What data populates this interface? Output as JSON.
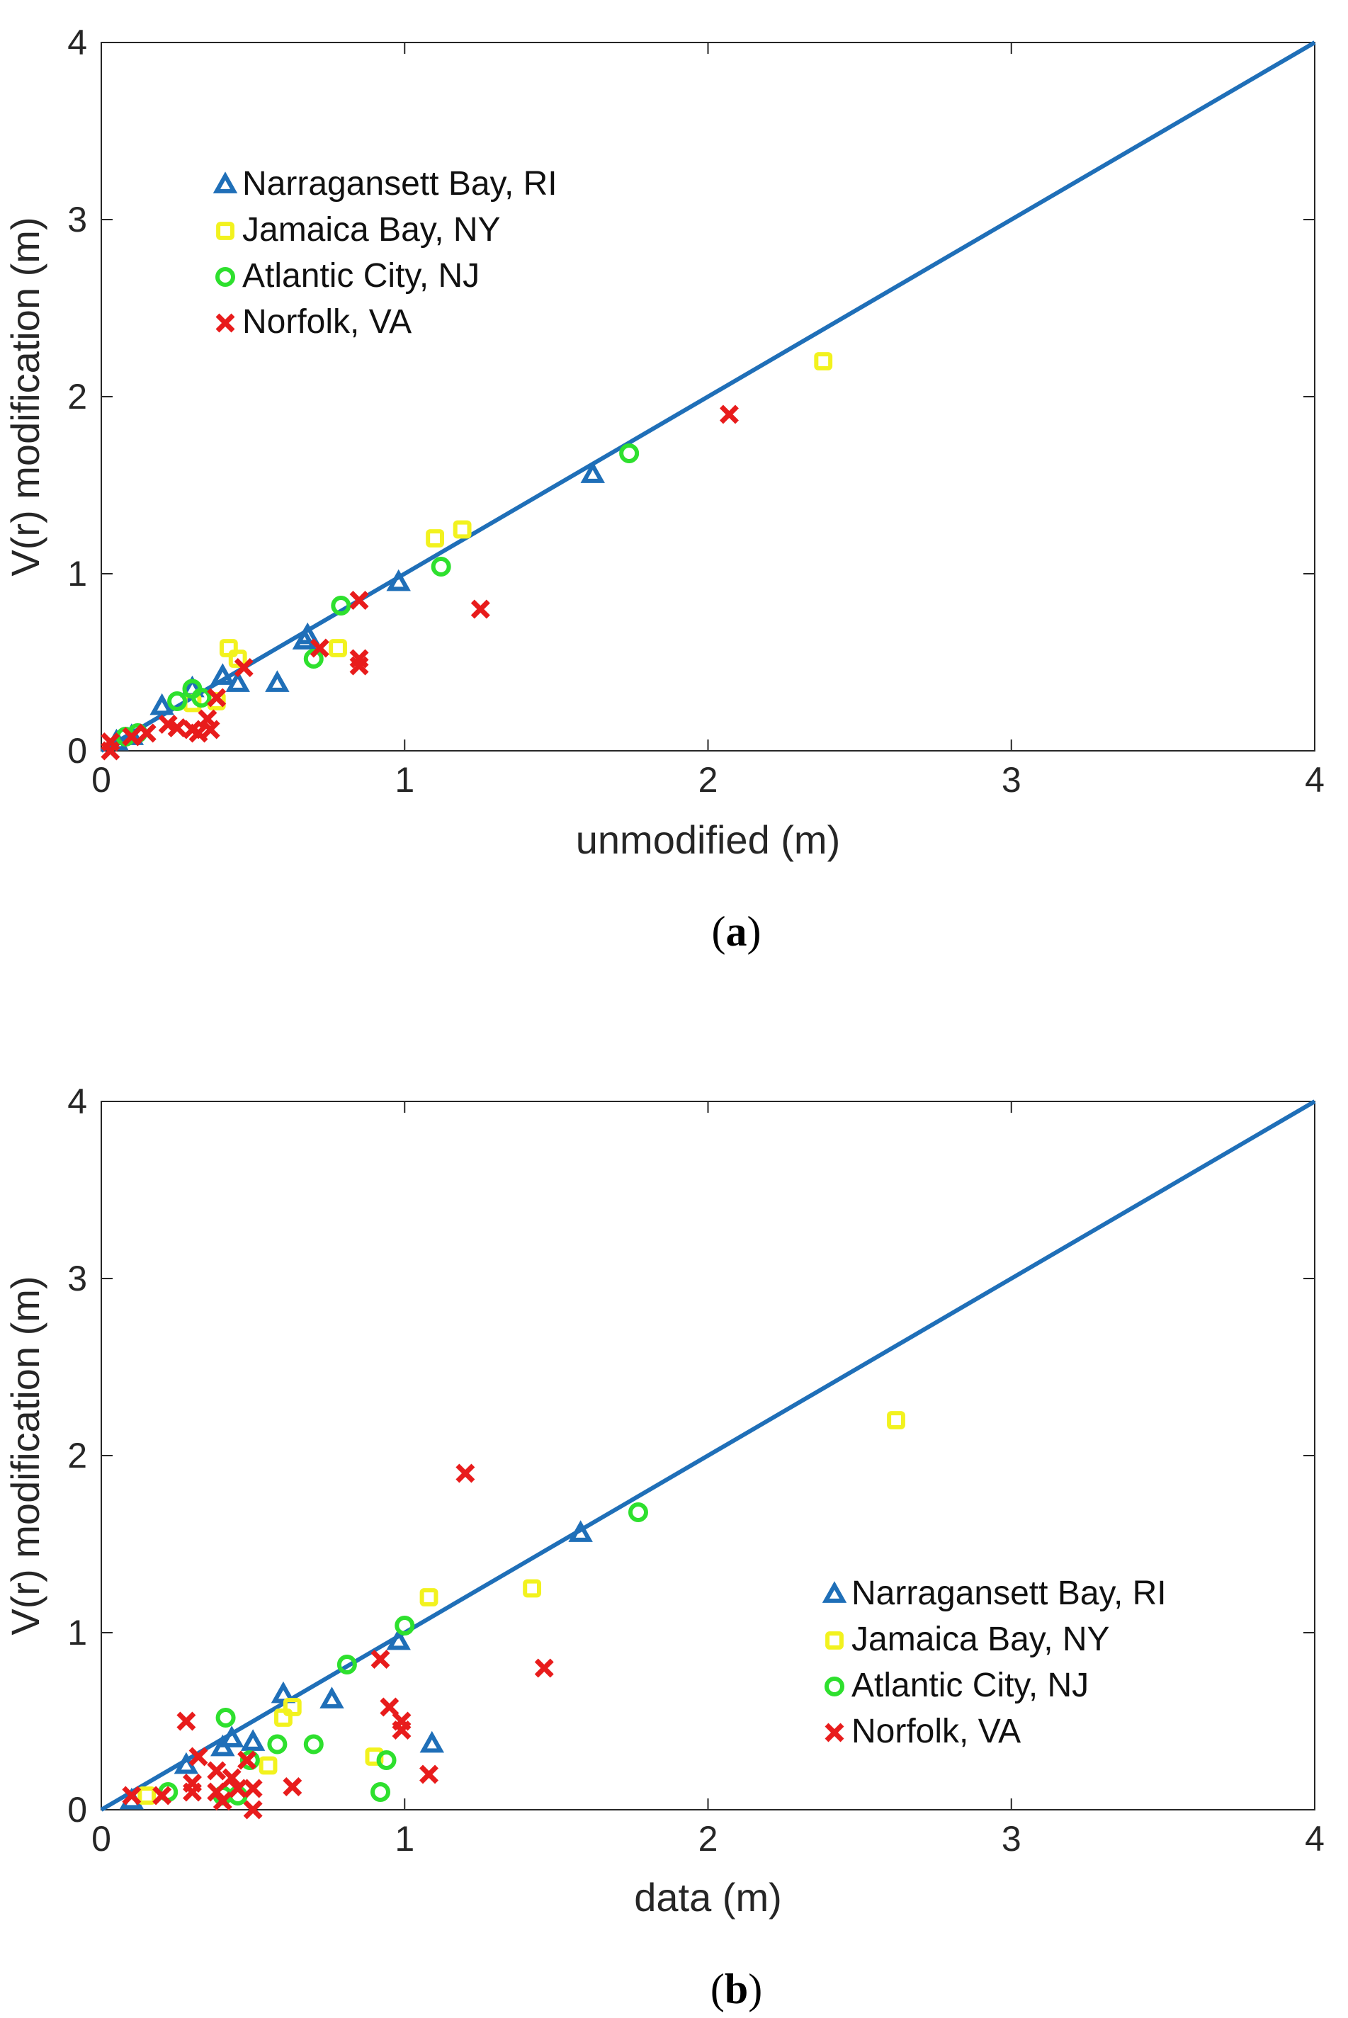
{
  "chart_data": [
    {
      "panel_label": "a",
      "type": "scatter",
      "xlabel": "unmodified (m)",
      "ylabel": "V(r) modification (m)",
      "xlim": [
        0,
        4
      ],
      "ylim": [
        0,
        4
      ],
      "xticks": [
        "0",
        "1",
        "2",
        "3",
        "4"
      ],
      "yticks": [
        "0",
        "1",
        "2",
        "3",
        "4"
      ],
      "legend_position": "upper-left",
      "line": {
        "x": [
          0,
          4
        ],
        "y": [
          0,
          4
        ],
        "color": "#1f6fb8"
      },
      "series": [
        {
          "name": "Narragansett Bay, RI",
          "marker": "triangle",
          "color": "#1f6fb8",
          "points": [
            [
              0.05,
              0.05
            ],
            [
              0.1,
              0.08
            ],
            [
              0.2,
              0.25
            ],
            [
              0.3,
              0.35
            ],
            [
              0.4,
              0.42
            ],
            [
              0.45,
              0.38
            ],
            [
              0.58,
              0.38
            ],
            [
              0.67,
              0.62
            ],
            [
              0.68,
              0.65
            ],
            [
              0.98,
              0.95
            ],
            [
              1.62,
              1.56
            ]
          ]
        },
        {
          "name": "Jamaica Bay, NY",
          "marker": "square",
          "color": "#f2f21e",
          "points": [
            [
              0.3,
              0.27
            ],
            [
              0.38,
              0.28
            ],
            [
              0.42,
              0.58
            ],
            [
              0.45,
              0.52
            ],
            [
              0.78,
              0.58
            ],
            [
              1.1,
              1.2
            ],
            [
              1.19,
              1.25
            ],
            [
              2.38,
              2.2
            ]
          ]
        },
        {
          "name": "Atlantic City, NJ",
          "marker": "circle",
          "color": "#2ee02e",
          "points": [
            [
              0.08,
              0.08
            ],
            [
              0.12,
              0.1
            ],
            [
              0.25,
              0.28
            ],
            [
              0.3,
              0.35
            ],
            [
              0.33,
              0.3
            ],
            [
              0.7,
              0.52
            ],
            [
              0.79,
              0.82
            ],
            [
              1.12,
              1.04
            ],
            [
              1.74,
              1.68
            ]
          ]
        },
        {
          "name": "Norfolk, VA",
          "marker": "x",
          "color": "#e81c1c",
          "points": [
            [
              0.03,
              0.05
            ],
            [
              0.03,
              0.0
            ],
            [
              0.1,
              0.08
            ],
            [
              0.15,
              0.1
            ],
            [
              0.22,
              0.15
            ],
            [
              0.25,
              0.13
            ],
            [
              0.3,
              0.12
            ],
            [
              0.32,
              0.1
            ],
            [
              0.35,
              0.18
            ],
            [
              0.36,
              0.12
            ],
            [
              0.38,
              0.3
            ],
            [
              0.47,
              0.47
            ],
            [
              0.72,
              0.58
            ],
            [
              0.85,
              0.85
            ],
            [
              0.85,
              0.52
            ],
            [
              0.85,
              0.48
            ],
            [
              1.25,
              0.8
            ],
            [
              2.07,
              1.9
            ]
          ]
        }
      ]
    },
    {
      "panel_label": "b",
      "type": "scatter",
      "xlabel": "data (m)",
      "ylabel": "V(r) modification (m)",
      "xlim": [
        0,
        4
      ],
      "ylim": [
        0,
        4
      ],
      "xticks": [
        "0",
        "1",
        "2",
        "3",
        "4"
      ],
      "yticks": [
        "0",
        "1",
        "2",
        "3",
        "4"
      ],
      "legend_position": "lower-right",
      "line": {
        "x": [
          0,
          4
        ],
        "y": [
          0,
          4
        ],
        "color": "#1f6fb8"
      },
      "series": [
        {
          "name": "Narragansett Bay, RI",
          "marker": "triangle",
          "color": "#1f6fb8",
          "points": [
            [
              0.1,
              0.05
            ],
            [
              0.28,
              0.25
            ],
            [
              0.4,
              0.35
            ],
            [
              0.43,
              0.4
            ],
            [
              0.5,
              0.38
            ],
            [
              0.6,
              0.65
            ],
            [
              0.76,
              0.62
            ],
            [
              0.98,
              0.95
            ],
            [
              1.09,
              0.37
            ],
            [
              1.58,
              1.56
            ]
          ]
        },
        {
          "name": "Jamaica Bay, NY",
          "marker": "square",
          "color": "#f2f21e",
          "points": [
            [
              0.15,
              0.08
            ],
            [
              0.55,
              0.25
            ],
            [
              0.6,
              0.52
            ],
            [
              0.63,
              0.58
            ],
            [
              0.9,
              0.3
            ],
            [
              1.08,
              1.2
            ],
            [
              1.42,
              1.25
            ],
            [
              2.62,
              2.2
            ]
          ]
        },
        {
          "name": "Atlantic City, NJ",
          "marker": "circle",
          "color": "#2ee02e",
          "points": [
            [
              0.22,
              0.1
            ],
            [
              0.4,
              0.08
            ],
            [
              0.41,
              0.52
            ],
            [
              0.45,
              0.08
            ],
            [
              0.49,
              0.28
            ],
            [
              0.58,
              0.37
            ],
            [
              0.7,
              0.37
            ],
            [
              0.81,
              0.82
            ],
            [
              0.92,
              0.1
            ],
            [
              0.94,
              0.28
            ],
            [
              1.0,
              1.04
            ],
            [
              1.77,
              1.68
            ]
          ]
        },
        {
          "name": "Norfolk, VA",
          "marker": "x",
          "color": "#e81c1c",
          "points": [
            [
              0.1,
              0.08
            ],
            [
              0.2,
              0.08
            ],
            [
              0.28,
              0.5
            ],
            [
              0.3,
              0.1
            ],
            [
              0.3,
              0.15
            ],
            [
              0.32,
              0.3
            ],
            [
              0.38,
              0.22
            ],
            [
              0.38,
              0.1
            ],
            [
              0.4,
              0.05
            ],
            [
              0.43,
              0.18
            ],
            [
              0.45,
              0.12
            ],
            [
              0.48,
              0.28
            ],
            [
              0.5,
              0.12
            ],
            [
              0.5,
              0.0
            ],
            [
              0.63,
              0.13
            ],
            [
              0.92,
              0.85
            ],
            [
              0.95,
              0.58
            ],
            [
              0.99,
              0.5
            ],
            [
              0.99,
              0.45
            ],
            [
              1.08,
              0.2
            ],
            [
              1.2,
              1.9
            ],
            [
              1.46,
              0.8
            ]
          ]
        }
      ]
    }
  ]
}
